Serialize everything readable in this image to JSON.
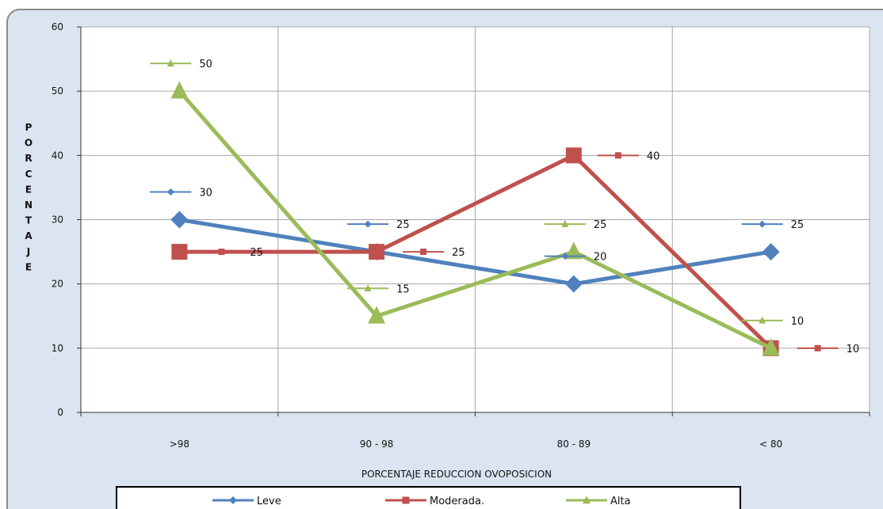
{
  "chart_data": {
    "type": "line",
    "categories": [
      ">98",
      "90 - 98",
      "80 - 89",
      "< 80"
    ],
    "series": [
      {
        "name": "Leve",
        "values": [
          30,
          25,
          20,
          25
        ],
        "color": "#4F81BD",
        "marker": "diamond"
      },
      {
        "name": "Moderada.",
        "values": [
          25,
          25,
          40,
          10
        ],
        "color": "#C0504D",
        "marker": "square"
      },
      {
        "name": "Alta",
        "values": [
          50,
          15,
          25,
          10
        ],
        "color": "#9BBB59",
        "marker": "triangle"
      }
    ],
    "yticks": [
      "0",
      "10",
      "20",
      "30",
      "40",
      "50",
      "60"
    ],
    "ylim": [
      0,
      60
    ],
    "xlabel": "PORCENTAJE REDUCCION OVOPOSICION",
    "ylabel": "PORCENTAJE",
    "grid": true,
    "legend_position": "bottom"
  },
  "style": {
    "frame_bg": "#DBE5F1",
    "frame_border": "#8A8A8A",
    "plot_bg": "#FFFFFF",
    "grid_color": "#A6A6A6"
  }
}
